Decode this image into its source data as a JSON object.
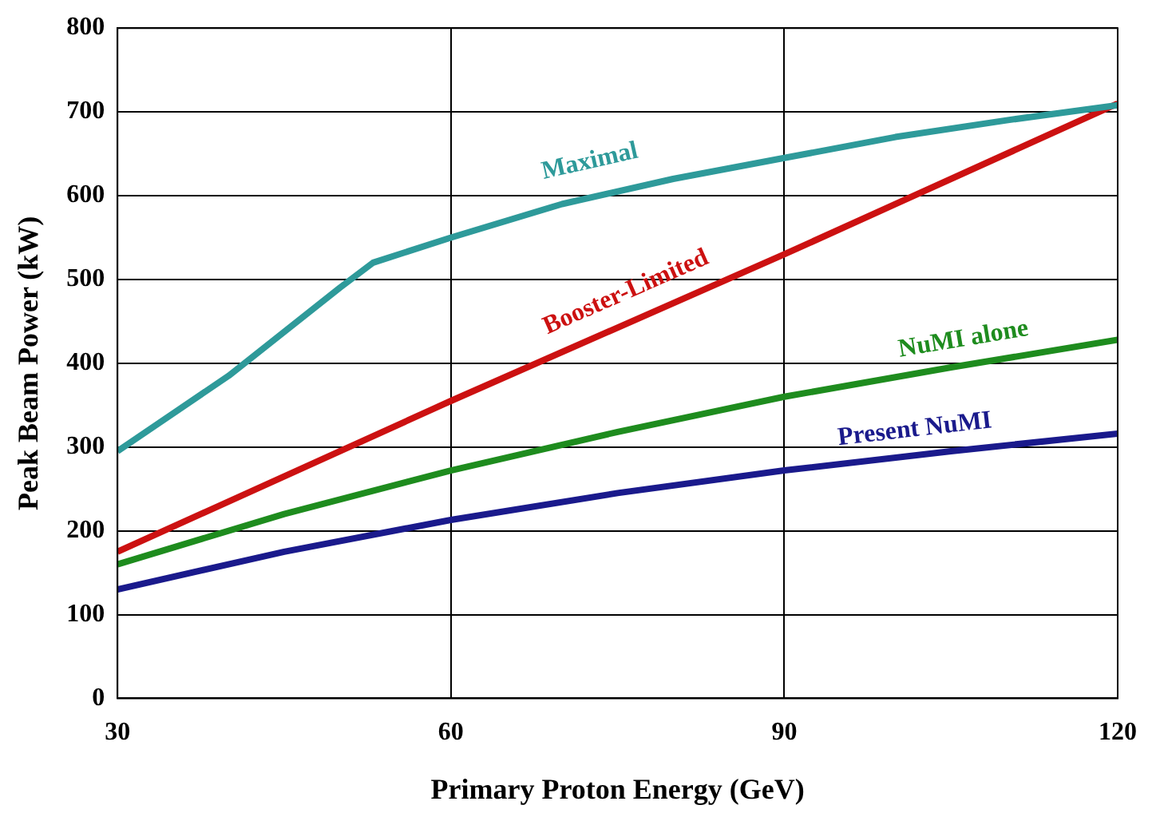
{
  "chart_data": {
    "type": "line",
    "xlabel": "Primary Proton Energy (GeV)",
    "ylabel": "Peak Beam Power (kW)",
    "xlim": [
      30,
      120
    ],
    "xticks": [
      30,
      60,
      90,
      120
    ],
    "ylim": [
      0,
      800
    ],
    "yticks": [
      0,
      100,
      200,
      300,
      400,
      500,
      600,
      700,
      800
    ],
    "grid": true,
    "legend": false,
    "marker": "none",
    "line_style": "solid",
    "series": [
      {
        "name": "Maximal",
        "color": "#2e9a9a",
        "x": [
          30,
          40,
          50,
          53,
          60,
          70,
          80,
          90,
          100,
          110,
          120
        ],
        "values": [
          295,
          385,
          490,
          520,
          550,
          590,
          620,
          645,
          670,
          690,
          708
        ]
      },
      {
        "name": "Booster-Limited",
        "color": "#cc1111",
        "x": [
          30,
          60,
          90,
          120
        ],
        "values": [
          175,
          355,
          530,
          710
        ]
      },
      {
        "name": "NuMI alone",
        "color": "#1e8c1e",
        "x": [
          30,
          45,
          60,
          75,
          90,
          105,
          120
        ],
        "values": [
          160,
          220,
          272,
          318,
          360,
          395,
          428
        ]
      },
      {
        "name": "Present NuMI",
        "color": "#1a1a8c",
        "x": [
          30,
          45,
          60,
          75,
          90,
          105,
          120
        ],
        "values": [
          130,
          175,
          213,
          245,
          272,
          295,
          316
        ]
      }
    ]
  }
}
